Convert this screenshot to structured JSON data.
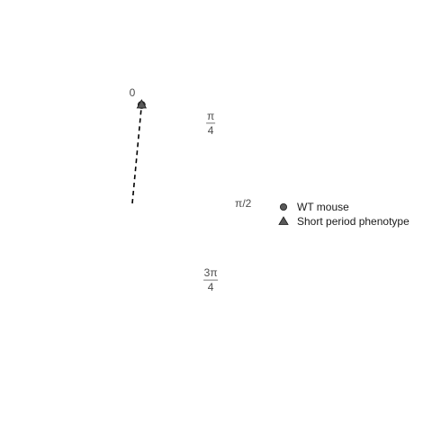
{
  "chart_data": {
    "type": "scatter",
    "coordinate_system": "polar",
    "angular_tick_labels": [
      {
        "angle": 0,
        "label": "0"
      },
      {
        "angle": 0.7854,
        "label": "π/4"
      },
      {
        "angle": 1.5708,
        "label": "π/2"
      },
      {
        "angle": 2.3562,
        "label": "3π/4"
      }
    ],
    "series": [
      {
        "name": "WT mouse",
        "marker": "circle",
        "points": [
          {
            "angle": 0.094,
            "radius": 1.0
          }
        ]
      },
      {
        "name": "Short period phenotype",
        "marker": "triangle",
        "points": [
          {
            "angle": 0.094,
            "radius": 1.0
          }
        ]
      }
    ],
    "mean_vector": {
      "angle": 0.094,
      "radius": 1.0,
      "style": "dashed"
    },
    "radius_max": 1.0,
    "grid": false,
    "legend_position": "right",
    "colors": {
      "marker_fill": "#595959",
      "marker_stroke": "#1a1a1a",
      "vector": "#000000",
      "text": "#4d4d4d"
    }
  }
}
